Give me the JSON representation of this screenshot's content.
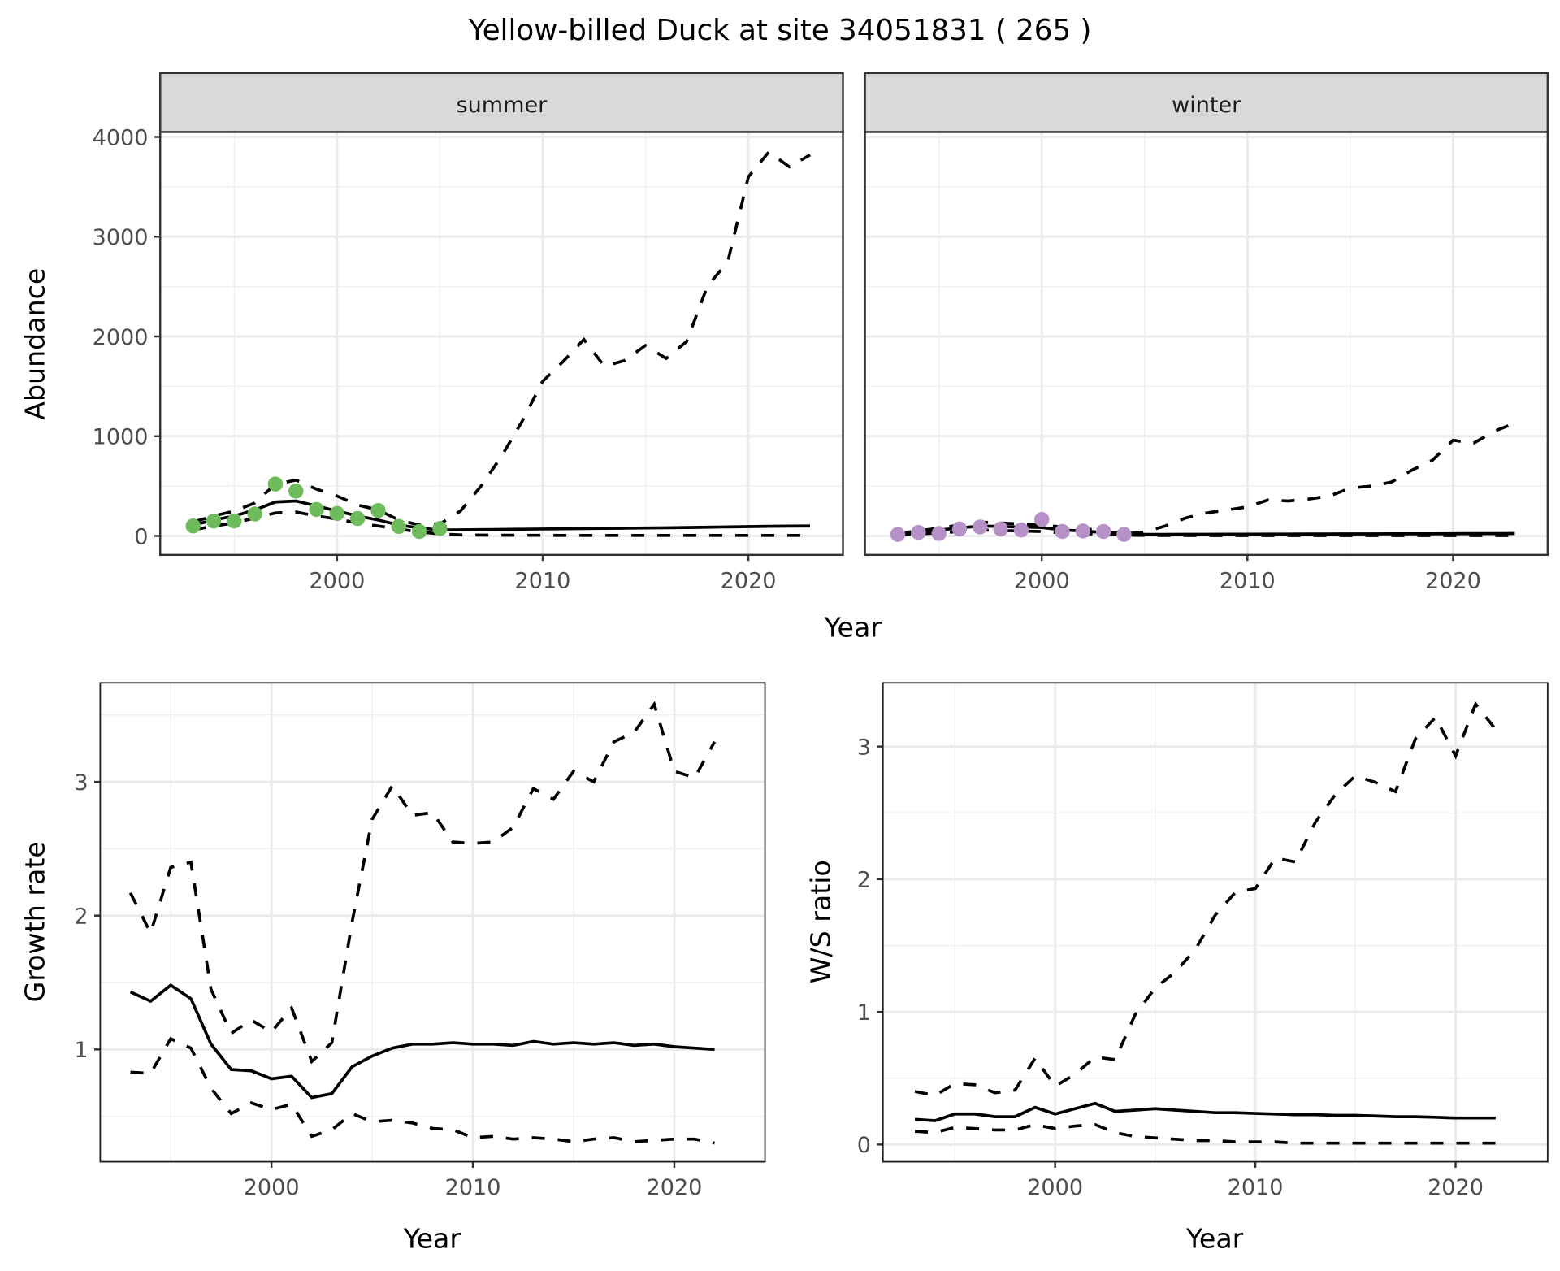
{
  "title": "Yellow-billed Duck at site 34051831 ( 265 )",
  "colors": {
    "summer": "#6dbb5a",
    "winter": "#b591c8"
  },
  "chart_data": [
    {
      "type": "line",
      "id": "summer",
      "strip_label": "summer",
      "xlabel": "Year",
      "ylabel": "Abundance",
      "xlim": [
        1991.4,
        2024.6
      ],
      "ylim": [
        -190,
        4050
      ],
      "xticks": [
        2000,
        2010,
        2020
      ],
      "yticks": [
        0,
        1000,
        2000,
        3000,
        4000
      ],
      "points": {
        "x": [
          1993,
          1994,
          1995,
          1996,
          1997,
          1998,
          1999,
          2000,
          2001,
          2002,
          2003,
          2004,
          2005
        ],
        "y": [
          100,
          150,
          150,
          220,
          520,
          450,
          265,
          225,
          175,
          255,
          95,
          45,
          75
        ]
      },
      "x": [
        1993,
        1994,
        1995,
        1996,
        1997,
        1998,
        1999,
        2000,
        2001,
        2002,
        2003,
        2004,
        2005,
        2006,
        2007,
        2008,
        2009,
        2010,
        2011,
        2012,
        2013,
        2014,
        2015,
        2016,
        2017,
        2018,
        2019,
        2020,
        2021,
        2022,
        2023
      ],
      "series": [
        {
          "name": "mean",
          "style": "solid",
          "values": [
            110,
            160,
            200,
            260,
            340,
            350,
            300,
            250,
            200,
            160,
            110,
            80,
            60,
            62,
            64,
            66,
            68,
            70,
            72,
            74,
            76,
            78,
            80,
            82,
            85,
            88,
            91,
            94,
            97,
            99,
            100
          ]
        },
        {
          "name": "upper",
          "style": "dashed",
          "values": [
            140,
            200,
            250,
            330,
            520,
            560,
            470,
            400,
            310,
            260,
            160,
            110,
            120,
            250,
            500,
            800,
            1150,
            1550,
            1750,
            1970,
            1700,
            1760,
            1910,
            1780,
            1950,
            2500,
            2750,
            3600,
            3850,
            3700,
            3820
          ]
        },
        {
          "name": "lower",
          "style": "dashed",
          "values": [
            60,
            100,
            130,
            180,
            230,
            240,
            200,
            170,
            130,
            100,
            70,
            40,
            20,
            10,
            8,
            7,
            6,
            6,
            5,
            5,
            5,
            5,
            5,
            5,
            5,
            5,
            5,
            5,
            5,
            5,
            5
          ]
        }
      ]
    },
    {
      "type": "line",
      "id": "winter",
      "strip_label": "winter",
      "xlabel": "Year",
      "ylabel": "Abundance",
      "xlim": [
        1991.4,
        2024.6
      ],
      "ylim": [
        -190,
        4050
      ],
      "xticks": [
        2000,
        2010,
        2020
      ],
      "yticks": [
        0,
        1000,
        2000,
        3000,
        4000
      ],
      "points": {
        "x": [
          1993,
          1994,
          1995,
          1996,
          1997,
          1998,
          1999,
          2000,
          2001,
          2002,
          2003,
          2004
        ],
        "y": [
          15,
          35,
          25,
          70,
          90,
          70,
          60,
          165,
          45,
          50,
          45,
          15
        ]
      },
      "x": [
        1993,
        1994,
        1995,
        1996,
        1997,
        1998,
        1999,
        2000,
        2001,
        2002,
        2003,
        2004,
        2005,
        2006,
        2007,
        2008,
        2009,
        2010,
        2011,
        2012,
        2013,
        2014,
        2015,
        2016,
        2017,
        2018,
        2019,
        2020,
        2021,
        2022,
        2023
      ],
      "series": [
        {
          "name": "mean",
          "style": "solid",
          "values": [
            20,
            40,
            60,
            80,
            100,
            95,
            90,
            85,
            60,
            50,
            35,
            20,
            15,
            15,
            16,
            16,
            17,
            17,
            18,
            18,
            19,
            19,
            20,
            20,
            21,
            21,
            22,
            23,
            24,
            24,
            25
          ]
        },
        {
          "name": "upper",
          "style": "dashed",
          "values": [
            30,
            50,
            80,
            110,
            140,
            130,
            120,
            110,
            90,
            75,
            50,
            20,
            40,
            100,
            180,
            230,
            260,
            290,
            360,
            350,
            370,
            400,
            480,
            500,
            540,
            660,
            760,
            960,
            930,
            1050,
            1130
          ]
        },
        {
          "name": "lower",
          "style": "dashed",
          "values": [
            10,
            20,
            30,
            45,
            60,
            55,
            50,
            45,
            30,
            25,
            15,
            8,
            5,
            4,
            4,
            3,
            3,
            3,
            3,
            3,
            3,
            3,
            3,
            3,
            3,
            3,
            3,
            3,
            3,
            3,
            3
          ]
        }
      ]
    },
    {
      "type": "line",
      "id": "growth",
      "xlabel": "Year",
      "ylabel": "Growth rate",
      "xlim": [
        1991.5,
        2024.5
      ],
      "ylim": [
        0.16,
        3.74
      ],
      "xticks": [
        2000,
        2010,
        2020
      ],
      "yticks": [
        1,
        2,
        3
      ],
      "x": [
        1993,
        1994,
        1995,
        1996,
        1997,
        1998,
        1999,
        2000,
        2001,
        2002,
        2003,
        2004,
        2005,
        2006,
        2007,
        2008,
        2009,
        2010,
        2011,
        2012,
        2013,
        2014,
        2015,
        2016,
        2017,
        2018,
        2019,
        2020,
        2021,
        2022
      ],
      "series": [
        {
          "name": "mean",
          "style": "solid",
          "values": [
            1.43,
            1.36,
            1.48,
            1.38,
            1.04,
            0.85,
            0.84,
            0.78,
            0.8,
            0.64,
            0.67,
            0.87,
            0.95,
            1.01,
            1.04,
            1.04,
            1.05,
            1.04,
            1.04,
            1.03,
            1.06,
            1.04,
            1.05,
            1.04,
            1.05,
            1.03,
            1.04,
            1.02,
            1.01,
            1.0
          ]
        },
        {
          "name": "upper",
          "style": "dashed",
          "values": [
            2.17,
            1.87,
            2.36,
            2.4,
            1.45,
            1.12,
            1.22,
            1.13,
            1.31,
            0.91,
            1.05,
            1.95,
            2.72,
            2.97,
            2.75,
            2.77,
            2.55,
            2.54,
            2.55,
            2.66,
            2.95,
            2.87,
            3.08,
            3.0,
            3.3,
            3.37,
            3.58,
            3.08,
            3.03,
            3.3
          ]
        },
        {
          "name": "lower",
          "style": "dashed",
          "values": [
            0.83,
            0.82,
            1.08,
            1.01,
            0.71,
            0.52,
            0.6,
            0.55,
            0.59,
            0.35,
            0.4,
            0.52,
            0.46,
            0.47,
            0.45,
            0.41,
            0.4,
            0.34,
            0.35,
            0.33,
            0.34,
            0.33,
            0.31,
            0.33,
            0.34,
            0.31,
            0.32,
            0.33,
            0.33,
            0.3
          ]
        }
      ]
    },
    {
      "type": "line",
      "id": "ws",
      "xlabel": "Year",
      "ylabel": "W/S ratio",
      "xlim": [
        1991.4,
        2024.6
      ],
      "ylim": [
        -0.13,
        3.48
      ],
      "xticks": [
        2000,
        2010,
        2020
      ],
      "yticks": [
        0,
        1,
        2,
        3
      ],
      "x": [
        1993,
        1994,
        1995,
        1996,
        1997,
        1998,
        1999,
        2000,
        2001,
        2002,
        2003,
        2004,
        2005,
        2006,
        2007,
        2008,
        2009,
        2010,
        2011,
        2012,
        2013,
        2014,
        2015,
        2016,
        2017,
        2018,
        2019,
        2020,
        2021,
        2022
      ],
      "series": [
        {
          "name": "mean",
          "style": "solid",
          "values": [
            0.19,
            0.18,
            0.23,
            0.23,
            0.21,
            0.21,
            0.28,
            0.23,
            0.27,
            0.31,
            0.25,
            0.26,
            0.27,
            0.26,
            0.25,
            0.24,
            0.24,
            0.235,
            0.23,
            0.225,
            0.225,
            0.22,
            0.22,
            0.215,
            0.21,
            0.21,
            0.205,
            0.2,
            0.2,
            0.2
          ]
        },
        {
          "name": "upper",
          "style": "dashed",
          "values": [
            0.4,
            0.37,
            0.46,
            0.45,
            0.39,
            0.41,
            0.65,
            0.44,
            0.53,
            0.66,
            0.64,
            0.98,
            1.18,
            1.3,
            1.47,
            1.73,
            1.9,
            1.93,
            2.16,
            2.13,
            2.43,
            2.64,
            2.78,
            2.73,
            2.66,
            3.06,
            3.22,
            2.93,
            3.32,
            3.13
          ]
        },
        {
          "name": "lower",
          "style": "dashed",
          "values": [
            0.1,
            0.09,
            0.13,
            0.12,
            0.11,
            0.11,
            0.15,
            0.12,
            0.14,
            0.15,
            0.09,
            0.06,
            0.05,
            0.04,
            0.03,
            0.03,
            0.02,
            0.02,
            0.02,
            0.01,
            0.01,
            0.01,
            0.01,
            0.01,
            0.01,
            0.01,
            0.01,
            0.01,
            0.01,
            0.01
          ]
        }
      ]
    }
  ]
}
